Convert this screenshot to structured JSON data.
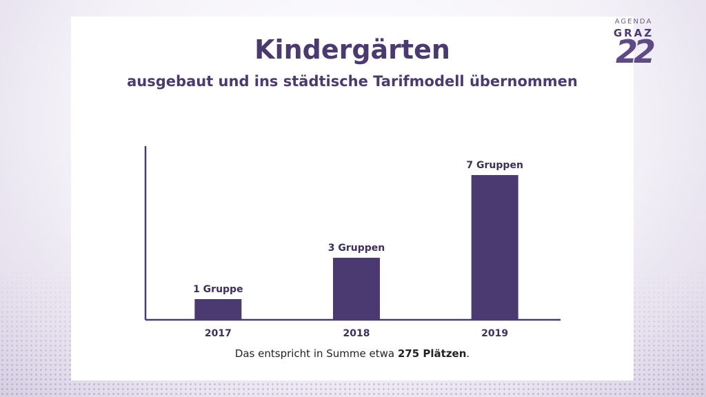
{
  "slide": {
    "title": "Kindergärten",
    "subtitle": "ausgebaut und ins städtische Tarifmodell übernommen",
    "footnote_prefix": "Das entspricht in Summe etwa ",
    "footnote_bold": "275 Plätzen",
    "footnote_suffix": "."
  },
  "logo": {
    "line1": "AGENDA",
    "line2": "GRAZ",
    "number": "22"
  },
  "colors": {
    "bar": "#4b3a72",
    "axis": "#4b3a72",
    "label": "#3d2f5e"
  },
  "chart_data": {
    "type": "bar",
    "categories": [
      "2017",
      "2018",
      "2019"
    ],
    "values": [
      1,
      3,
      7
    ],
    "data_labels": [
      "1 Gruppe",
      "3 Gruppen",
      "7 Gruppen"
    ],
    "title": "",
    "xlabel": "",
    "ylabel": "",
    "ylim": [
      0,
      9
    ],
    "grid": false,
    "legend": "none"
  }
}
